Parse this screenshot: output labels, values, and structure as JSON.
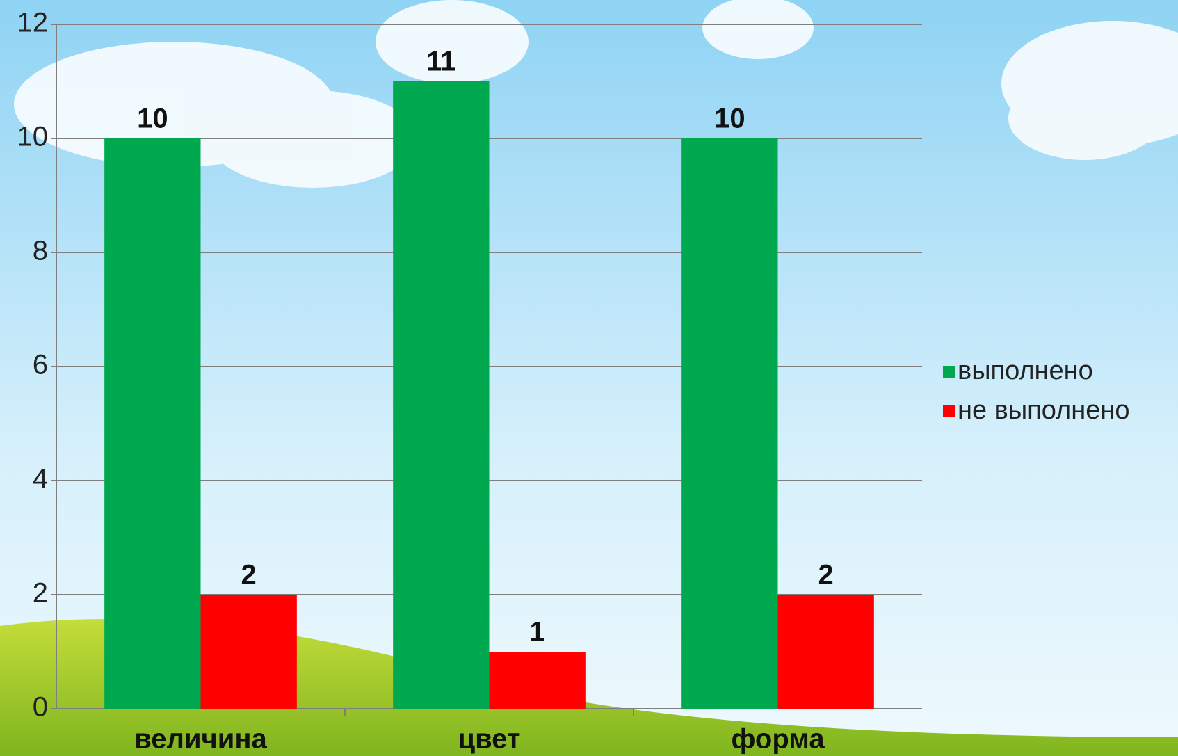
{
  "chart_data": {
    "type": "bar",
    "categories": [
      "величина",
      "цвет",
      "форма"
    ],
    "series": [
      {
        "name": "выполнено",
        "color": "#00a84f",
        "values": [
          10,
          11,
          10
        ]
      },
      {
        "name": "не выполнено",
        "color": "#ff0000",
        "values": [
          2,
          1,
          2
        ]
      }
    ],
    "ylim": [
      0,
      12
    ],
    "yticks": [
      0,
      2,
      4,
      6,
      8,
      10,
      12
    ],
    "grid": true,
    "legend": "right"
  }
}
